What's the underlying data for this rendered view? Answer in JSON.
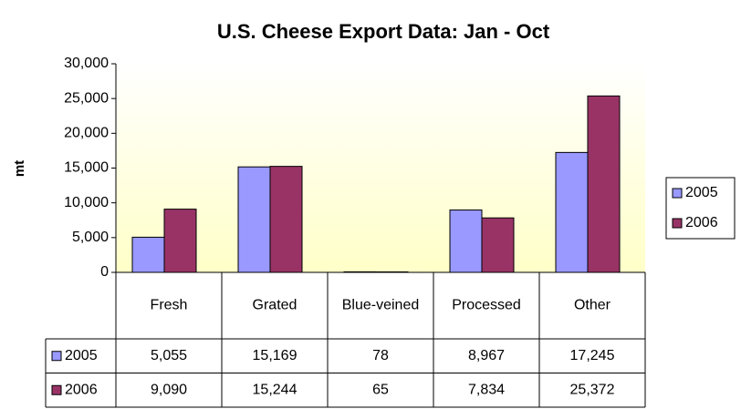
{
  "chart_data": {
    "type": "bar",
    "title": "U.S. Cheese Export Data: Jan - Oct",
    "y_label": "mt",
    "categories": [
      "Fresh",
      "Grated",
      "Blue-veined",
      "Processed",
      "Other"
    ],
    "series": [
      {
        "name": "2005",
        "color": "#9999ff",
        "values": [
          5055,
          15169,
          78,
          8967,
          17245
        ],
        "value_labels": [
          "5,055",
          "15,169",
          "78",
          "8,967",
          "17,245"
        ]
      },
      {
        "name": "2006",
        "color": "#993366",
        "values": [
          9090,
          15244,
          65,
          7834,
          25372
        ],
        "value_labels": [
          "9,090",
          "15,244",
          "65",
          "7,834",
          "25,372"
        ]
      }
    ],
    "ylim": [
      0,
      30000
    ],
    "yticks": [
      0,
      {
        "value": 5000,
        "label": "5,000"
      },
      {
        "value": 10000,
        "label": "10,000"
      },
      {
        "value": 15000,
        "label": "15,000"
      },
      {
        "value": 20000,
        "label": "20,000"
      },
      {
        "value": 25000,
        "label": "25,000"
      },
      {
        "value": 30000,
        "label": "30,000"
      }
    ],
    "grid": false,
    "legend": "right",
    "data_table": true
  }
}
